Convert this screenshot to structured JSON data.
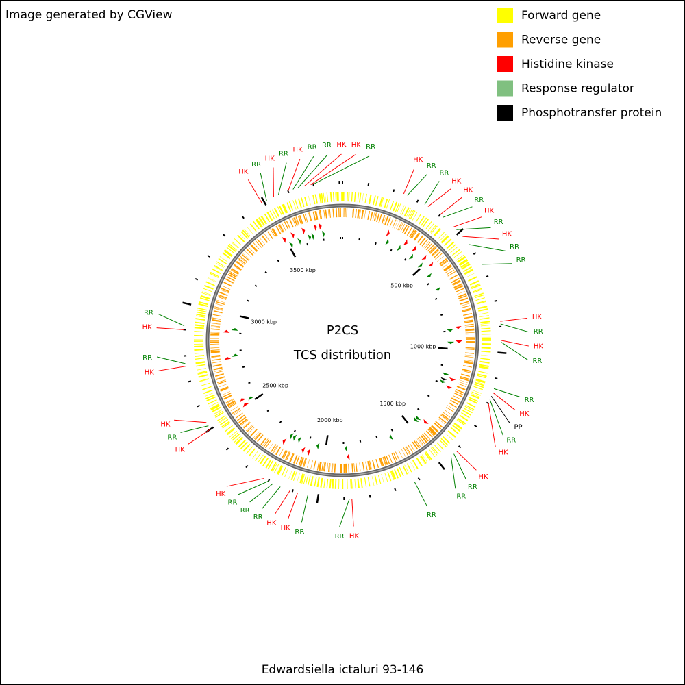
{
  "header": {
    "credit": "Image generated by CGView"
  },
  "legend": [
    {
      "label": "Forward gene",
      "color": "#ffff00"
    },
    {
      "label": "Reverse gene",
      "color": "#ff9f00"
    },
    {
      "label": "Histidine kinase",
      "color": "#ff0000"
    },
    {
      "label": "Response regulator",
      "color": "#80c080"
    },
    {
      "label": "Phosphotransfer protein",
      "color": "#000000"
    }
  ],
  "map": {
    "title": "P2CS",
    "subtitle": "TCS distribution",
    "genome_length_kbp": 3812,
    "ticks": [
      {
        "value": 500,
        "label": "500 kbp"
      },
      {
        "value": 1000,
        "label": "1000 kbp"
      },
      {
        "value": 1500,
        "label": "1500 kbp"
      },
      {
        "value": 2000,
        "label": "2000 kbp"
      },
      {
        "value": 2500,
        "label": "2500 kbp"
      },
      {
        "value": 3000,
        "label": "3000 kbp"
      },
      {
        "value": 3500,
        "label": "3500 kbp"
      }
    ],
    "features": [
      {
        "label": "HK",
        "position_kbp": 240,
        "color": "#ff0000"
      },
      {
        "label": "RR",
        "position_kbp": 255,
        "color": "#008000"
      },
      {
        "label": "RR",
        "position_kbp": 330,
        "color": "#008000"
      },
      {
        "label": "HK",
        "position_kbp": 345,
        "color": "#ff0000"
      },
      {
        "label": "HK",
        "position_kbp": 400,
        "color": "#ff0000"
      },
      {
        "label": "RR",
        "position_kbp": 415,
        "color": "#008000"
      },
      {
        "label": "HK",
        "position_kbp": 470,
        "color": "#ff0000"
      },
      {
        "label": "RR",
        "position_kbp": 485,
        "color": "#008000"
      },
      {
        "label": "HK",
        "position_kbp": 520,
        "color": "#ff0000"
      },
      {
        "label": "RR",
        "position_kbp": 560,
        "color": "#008000"
      },
      {
        "label": "RR",
        "position_kbp": 650,
        "color": "#008000"
      },
      {
        "label": "HK",
        "position_kbp": 880,
        "color": "#ff0000"
      },
      {
        "label": "RR",
        "position_kbp": 890,
        "color": "#008000"
      },
      {
        "label": "HK",
        "position_kbp": 953,
        "color": "#ff0000"
      },
      {
        "label": "RR",
        "position_kbp": 960,
        "color": "#008000"
      },
      {
        "label": "RR",
        "position_kbp": 1140,
        "color": "#008000"
      },
      {
        "label": "HK",
        "position_kbp": 1155,
        "color": "#ff0000"
      },
      {
        "label": "PP",
        "position_kbp": 1170,
        "color": "#000000"
      },
      {
        "label": "RR",
        "position_kbp": 1185,
        "color": "#008000"
      },
      {
        "label": "HK",
        "position_kbp": 1200,
        "color": "#ff0000"
      },
      {
        "label": "HK",
        "position_kbp": 1420,
        "color": "#ff0000"
      },
      {
        "label": "RR",
        "position_kbp": 1435,
        "color": "#008000"
      },
      {
        "label": "RR",
        "position_kbp": 1450,
        "color": "#008000"
      },
      {
        "label": "RR",
        "position_kbp": 1620,
        "color": "#008000"
      },
      {
        "label": "HK",
        "position_kbp": 1870,
        "color": "#ff0000"
      },
      {
        "label": "RR",
        "position_kbp": 1880,
        "color": "#008000"
      },
      {
        "label": "RR",
        "position_kbp": 2040,
        "color": "#008000"
      },
      {
        "label": "HK",
        "position_kbp": 2080,
        "color": "#ff0000"
      },
      {
        "label": "HK",
        "position_kbp": 2110,
        "color": "#ff0000"
      },
      {
        "label": "RR",
        "position_kbp": 2150,
        "color": "#008000"
      },
      {
        "label": "RR",
        "position_kbp": 2180,
        "color": "#008000"
      },
      {
        "label": "RR",
        "position_kbp": 2200,
        "color": "#008000"
      },
      {
        "label": "HK",
        "position_kbp": 2220,
        "color": "#ff0000"
      },
      {
        "label": "HK",
        "position_kbp": 2500,
        "color": "#ff0000"
      },
      {
        "label": "RR",
        "position_kbp": 2515,
        "color": "#008000"
      },
      {
        "label": "HK",
        "position_kbp": 2530,
        "color": "#ff0000"
      },
      {
        "label": "HK",
        "position_kbp": 2760,
        "color": "#ff0000"
      },
      {
        "label": "RR",
        "position_kbp": 2770,
        "color": "#008000"
      },
      {
        "label": "HK",
        "position_kbp": 2900,
        "color": "#ff0000"
      },
      {
        "label": "RR",
        "position_kbp": 2915,
        "color": "#008000"
      },
      {
        "label": "HK",
        "position_kbp": 3490,
        "color": "#ff0000"
      },
      {
        "label": "RR",
        "position_kbp": 3510,
        "color": "#008000"
      },
      {
        "label": "HK",
        "position_kbp": 3540,
        "color": "#ff0000"
      },
      {
        "label": "RR",
        "position_kbp": 3560,
        "color": "#008000"
      },
      {
        "label": "HK",
        "position_kbp": 3600,
        "color": "#ff0000"
      },
      {
        "label": "RR",
        "position_kbp": 3620,
        "color": "#008000"
      },
      {
        "label": "RR",
        "position_kbp": 3640,
        "color": "#008000"
      },
      {
        "label": "HK",
        "position_kbp": 3665,
        "color": "#ff0000"
      },
      {
        "label": "HK",
        "position_kbp": 3690,
        "color": "#ff0000"
      },
      {
        "label": "RR",
        "position_kbp": 3700,
        "color": "#008000"
      }
    ]
  },
  "footer": {
    "organism": "Edwardsiella ictaluri 93-146"
  }
}
